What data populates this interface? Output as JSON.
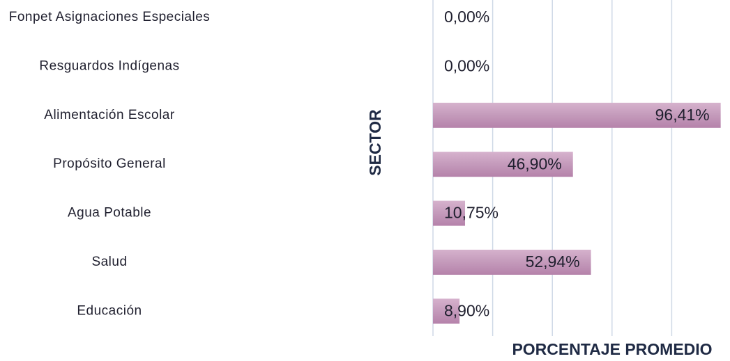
{
  "chart_data": {
    "type": "bar",
    "orientation": "horizontal",
    "categories": [
      "Fonpet Asignaciones Especiales",
      "Resguardos Indígenas",
      "Alimentación Escolar",
      "Propósito General",
      "Agua Potable",
      "Salud",
      "Educación"
    ],
    "values": [
      0,
      0,
      96.41,
      46.9,
      10.75,
      52.94,
      8.9
    ],
    "value_labels": [
      "0,00%",
      "0,00%",
      "96,41%",
      "46,90%",
      "10,75%",
      "52,94%",
      "8,90%"
    ],
    "color": "#c49abb",
    "xlim": [
      0,
      100
    ],
    "xticks": [
      0,
      20,
      40,
      60,
      80
    ],
    "grid": true,
    "x_label": "PORCENTAJE PROMEDIO",
    "y_label": "SECTOR"
  }
}
